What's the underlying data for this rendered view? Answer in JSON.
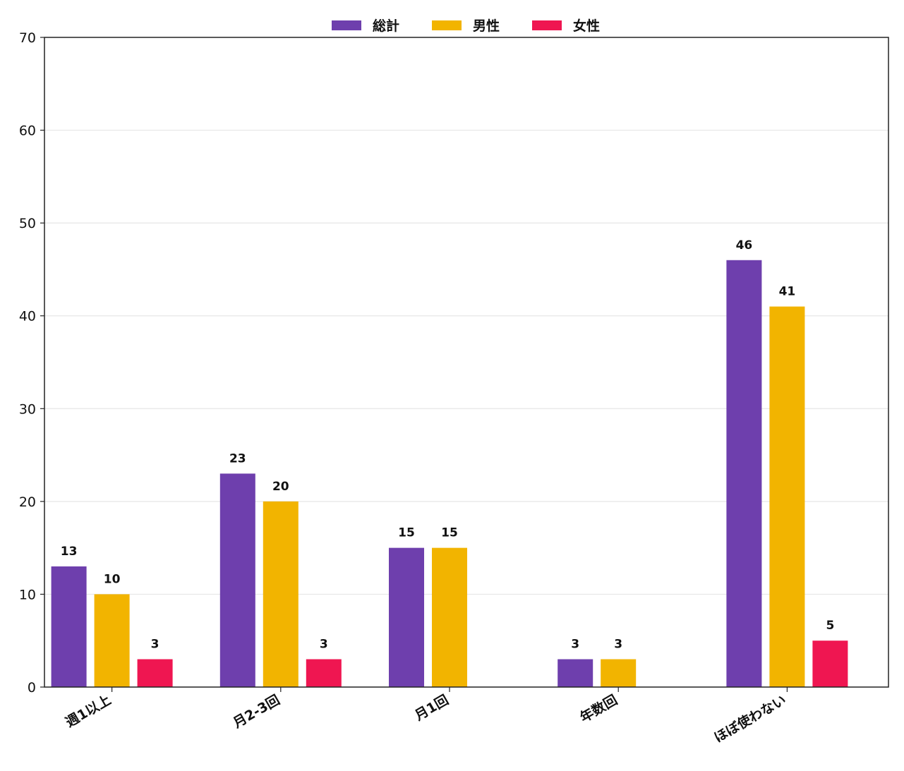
{
  "chart_data": {
    "type": "bar",
    "categories": [
      "週1以上",
      "月2-3回",
      "月1回",
      "年数回",
      "ほぼ使わない"
    ],
    "series": [
      {
        "name": "総計",
        "color": "#6e3fad",
        "values": [
          13,
          23,
          15,
          3,
          46
        ]
      },
      {
        "name": "男性",
        "color": "#f2b400",
        "values": [
          10,
          20,
          15,
          3,
          41
        ]
      },
      {
        "name": "女性",
        "color": "#ef1651",
        "values": [
          3,
          3,
          0,
          0,
          5
        ]
      }
    ],
    "title": "",
    "xlabel": "",
    "ylabel": "",
    "ylim": [
      0,
      70
    ],
    "yticks": [
      0,
      10,
      20,
      30,
      40,
      50,
      60,
      70
    ],
    "grid": "horizontal",
    "legend_position": "top-center"
  }
}
